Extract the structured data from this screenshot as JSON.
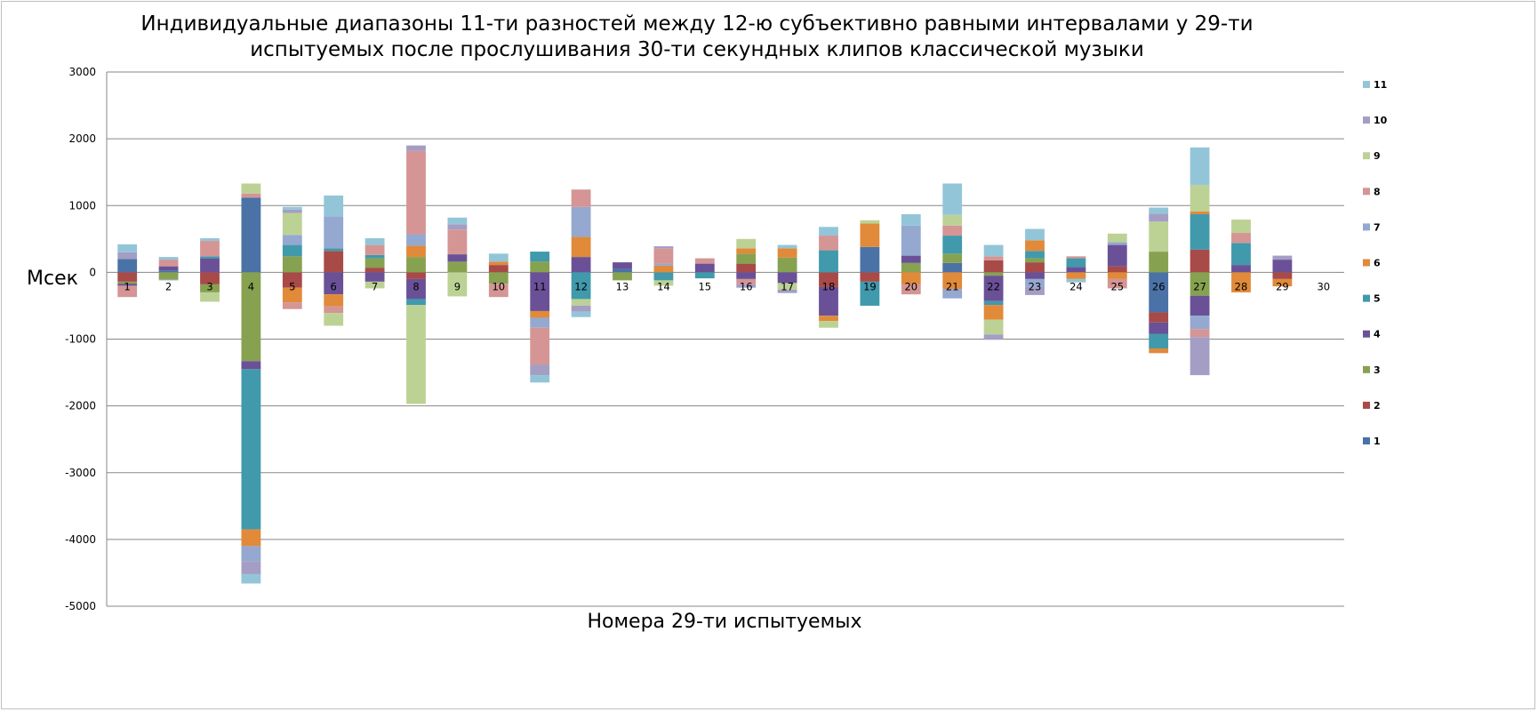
{
  "chart_data": {
    "type": "bar",
    "stacked": true,
    "title": "Индивидуальные диапазоны 11-ти разностей между 12-ю субъективно равными интервалами у 29-ти испытуемых после прослушивания 30-ти секундных клипов классической музыки",
    "title_lines": [
      "Индивидуальные диапазоны 11-ти разностей между 12-ю субъективно равными интервалами у 29-ти",
      "испытуемых после прослушивания 30-ти секундных клипов классической музыки"
    ],
    "xlabel": "Номера 29-ти испытуемых",
    "ylabel": "Мсек",
    "ylim": [
      -5000,
      3000
    ],
    "yticks": [
      3000,
      2000,
      1000,
      0,
      -1000,
      -2000,
      -3000,
      -4000,
      -5000
    ],
    "grid": true,
    "legend_position": "right",
    "categories": [
      "1",
      "2",
      "3",
      "4",
      "5",
      "6",
      "7",
      "8",
      "9",
      "10",
      "11",
      "12",
      "13",
      "14",
      "15",
      "16",
      "17",
      "18",
      "19",
      "20",
      "21",
      "22",
      "23",
      "24",
      "25",
      "26",
      "27",
      "28",
      "29",
      "30"
    ],
    "series": [
      {
        "name": "1",
        "color": "#4a72a6",
        "values": [
          200,
          30,
          0,
          1120,
          0,
          0,
          0,
          0,
          0,
          0,
          0,
          0,
          50,
          0,
          0,
          0,
          0,
          0,
          380,
          0,
          140,
          0,
          0,
          0,
          0,
          -600,
          0,
          0,
          0,
          0
        ]
      },
      {
        "name": "2",
        "color": "#a84a48",
        "values": [
          -140,
          0,
          -180,
          0,
          -230,
          320,
          70,
          -100,
          0,
          110,
          0,
          0,
          0,
          0,
          0,
          130,
          0,
          -220,
          -140,
          0,
          0,
          180,
          150,
          0,
          90,
          -150,
          340,
          0,
          -100,
          0
        ]
      },
      {
        "name": "3",
        "color": "#86a250",
        "values": [
          -30,
          -110,
          -120,
          -1330,
          240,
          0,
          140,
          230,
          160,
          -170,
          160,
          0,
          -120,
          0,
          0,
          150,
          220,
          0,
          0,
          140,
          140,
          -50,
          60,
          0,
          0,
          310,
          -350,
          0,
          0,
          0
        ]
      },
      {
        "name": "4",
        "color": "#6a5197",
        "values": [
          -30,
          60,
          210,
          -120,
          0,
          -330,
          -140,
          -300,
          110,
          0,
          -580,
          230,
          100,
          0,
          130,
          -100,
          -160,
          -430,
          0,
          110,
          0,
          -380,
          -100,
          80,
          320,
          -170,
          -300,
          110,
          190,
          0
        ]
      },
      {
        "name": "5",
        "color": "#4199ac",
        "values": [
          0,
          0,
          30,
          -2400,
          170,
          40,
          50,
          -90,
          0,
          0,
          150,
          -400,
          0,
          -120,
          -90,
          0,
          0,
          330,
          -360,
          0,
          270,
          -60,
          110,
          130,
          0,
          -220,
          530,
          330,
          0,
          0
        ]
      },
      {
        "name": "6",
        "color": "#e08a3a",
        "values": [
          0,
          0,
          0,
          -250,
          -220,
          -180,
          0,
          170,
          0,
          50,
          -100,
          300,
          0,
          100,
          0,
          80,
          140,
          -80,
          350,
          -180,
          -250,
          -220,
          160,
          -100,
          -100,
          -70,
          40,
          -300,
          -110,
          0
        ]
      },
      {
        "name": "7",
        "color": "#94a8d0",
        "values": [
          0,
          -10,
          0,
          -230,
          150,
          480,
          0,
          170,
          0,
          0,
          -150,
          450,
          0,
          30,
          0,
          0,
          0,
          0,
          0,
          450,
          -140,
          0,
          -120,
          0,
          40,
          0,
          -200,
          0,
          0,
          0
        ]
      },
      {
        "name": "8",
        "color": "#d49594",
        "values": [
          -170,
          100,
          230,
          60,
          -100,
          -100,
          150,
          1250,
          370,
          -200,
          -550,
          260,
          0,
          230,
          80,
          -80,
          0,
          220,
          0,
          -150,
          150,
          60,
          0,
          30,
          -140,
          0,
          -120,
          150,
          0,
          0
        ]
      },
      {
        "name": "9",
        "color": "#bcd295",
        "values": [
          0,
          0,
          -140,
          150,
          330,
          -190,
          -100,
          -1480,
          -360,
          0,
          0,
          -100,
          0,
          -80,
          0,
          140,
          -100,
          -100,
          50,
          0,
          160,
          -220,
          0,
          0,
          130,
          450,
          400,
          200,
          0,
          0
        ]
      },
      {
        "name": "10",
        "color": "#a49ec5",
        "values": [
          100,
          0,
          0,
          -190,
          50,
          0,
          0,
          80,
          80,
          0,
          -160,
          -90,
          0,
          30,
          0,
          -50,
          -50,
          0,
          0,
          0,
          0,
          -80,
          -120,
          0,
          0,
          120,
          -570,
          0,
          60,
          0
        ]
      },
      {
        "name": "11",
        "color": "#93c5d9",
        "values": [
          120,
          40,
          40,
          -140,
          40,
          310,
          100,
          0,
          100,
          120,
          -110,
          -80,
          0,
          0,
          0,
          0,
          50,
          130,
          0,
          170,
          470,
          170,
          170,
          -50,
          0,
          90,
          560,
          0,
          0,
          0
        ]
      }
    ]
  }
}
